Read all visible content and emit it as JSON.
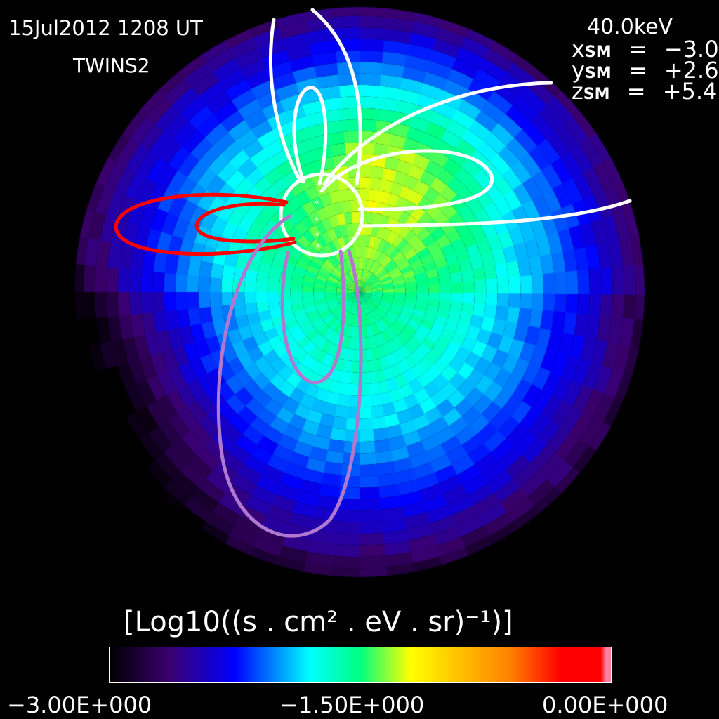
{
  "header": {
    "datetime": "15Jul2012 1208 UT",
    "spacecraft": "TWINS2",
    "energy": "40.0keV",
    "coords": [
      {
        "var": "x",
        "sub": "SM",
        "eq": "=",
        "value": "−3.0"
      },
      {
        "var": "y",
        "sub": "SM",
        "eq": "=",
        "value": "+2.6"
      },
      {
        "var": "z",
        "sub": "SM",
        "eq": "=",
        "value": "+5.4"
      }
    ]
  },
  "chart_data": {
    "type": "heatmap",
    "description_kind": "ENA flux image in polar pixel grid with field-line overlays",
    "colorbar": {
      "label": "[Log10((s . cm² . eV . sr)⁻¹)]",
      "range": [
        -3.0,
        0.0
      ],
      "ticks": [
        "−3.00E+000",
        "−1.50E+000",
        "0.00E+000"
      ],
      "colormap": [
        "#000000",
        "#3a006e",
        "#0000ff",
        "#00ffff",
        "#00ff80",
        "#ffff00",
        "#ff8000",
        "#ff0000"
      ]
    },
    "field_line_colors": {
      "white": "#ffffff",
      "red": "#ff0000",
      "purple": "#b078d0"
    }
  }
}
